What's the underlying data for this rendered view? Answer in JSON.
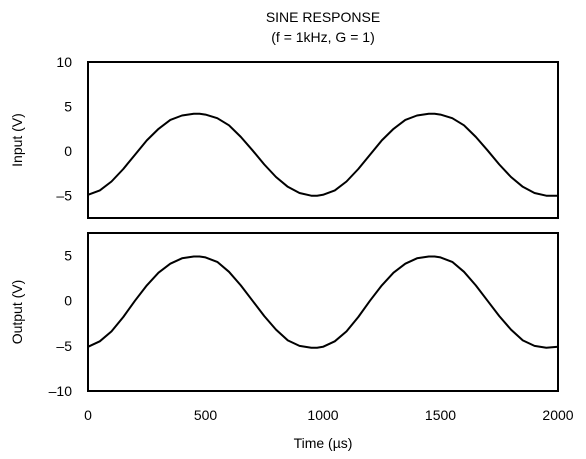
{
  "chart_data": {
    "type": "line",
    "title": "SINE RESPONSE",
    "subtitle": "(f = 1kHz, G = 1)",
    "xlabel": "Time (µs)",
    "xlim": [
      0,
      2000
    ],
    "x_ticks": [
      "0",
      "500",
      "1000",
      "1500",
      "2000"
    ],
    "grid": false,
    "panels": [
      {
        "ylabel": "Input (V)",
        "ylim": [
          -7.5,
          10
        ],
        "y_ticks": [
          "10",
          "5",
          "0",
          "–5"
        ],
        "series": [
          {
            "x": [
              0,
              50,
              100,
              150,
              200,
              250,
              300,
              350,
              400,
              450,
              475,
              500,
              550,
              600,
              650,
              700,
              750,
              800,
              850,
              900,
              950,
              975,
              1000,
              1050,
              1100,
              1150,
              1200,
              1250,
              1300,
              1350,
              1400,
              1450,
              1475,
              1500,
              1550,
              1600,
              1650,
              1700,
              1750,
              1800,
              1850,
              1900,
              1950,
              2000
            ],
            "y": [
              -4.9,
              -4.4,
              -3.4,
              -2.0,
              -0.4,
              1.2,
              2.5,
              3.5,
              4.0,
              4.2,
              4.2,
              4.1,
              3.7,
              2.9,
              1.6,
              0.1,
              -1.5,
              -2.9,
              -4.0,
              -4.7,
              -5.0,
              -5.0,
              -4.9,
              -4.4,
              -3.4,
              -2.0,
              -0.4,
              1.2,
              2.5,
              3.5,
              4.0,
              4.2,
              4.2,
              4.1,
              3.7,
              2.9,
              1.6,
              0.1,
              -1.5,
              -2.9,
              -4.0,
              -4.7,
              -5.0,
              -5.0
            ]
          }
        ]
      },
      {
        "ylabel": "Output (V)",
        "ylim": [
          -10,
          7.5
        ],
        "y_ticks": [
          "5",
          "0",
          "–5",
          "–10"
        ],
        "series": [
          {
            "x": [
              0,
              50,
              100,
              150,
              200,
              250,
              300,
              350,
              400,
              450,
              475,
              500,
              550,
              600,
              650,
              700,
              750,
              800,
              850,
              900,
              950,
              975,
              1000,
              1050,
              1100,
              1150,
              1200,
              1250,
              1300,
              1350,
              1400,
              1450,
              1475,
              1500,
              1550,
              1600,
              1650,
              1700,
              1750,
              1800,
              1850,
              1900,
              1950,
              2000
            ],
            "y": [
              -5.1,
              -4.5,
              -3.4,
              -1.8,
              0.0,
              1.7,
              3.1,
              4.1,
              4.7,
              4.9,
              4.9,
              4.8,
              4.3,
              3.2,
              1.7,
              0.0,
              -1.7,
              -3.2,
              -4.4,
              -5.0,
              -5.2,
              -5.2,
              -5.1,
              -4.5,
              -3.4,
              -1.8,
              0.0,
              1.7,
              3.1,
              4.1,
              4.7,
              4.9,
              4.9,
              4.8,
              4.3,
              3.2,
              1.7,
              0.0,
              -1.7,
              -3.2,
              -4.4,
              -5.0,
              -5.2,
              -5.1
            ]
          }
        ]
      }
    ]
  }
}
